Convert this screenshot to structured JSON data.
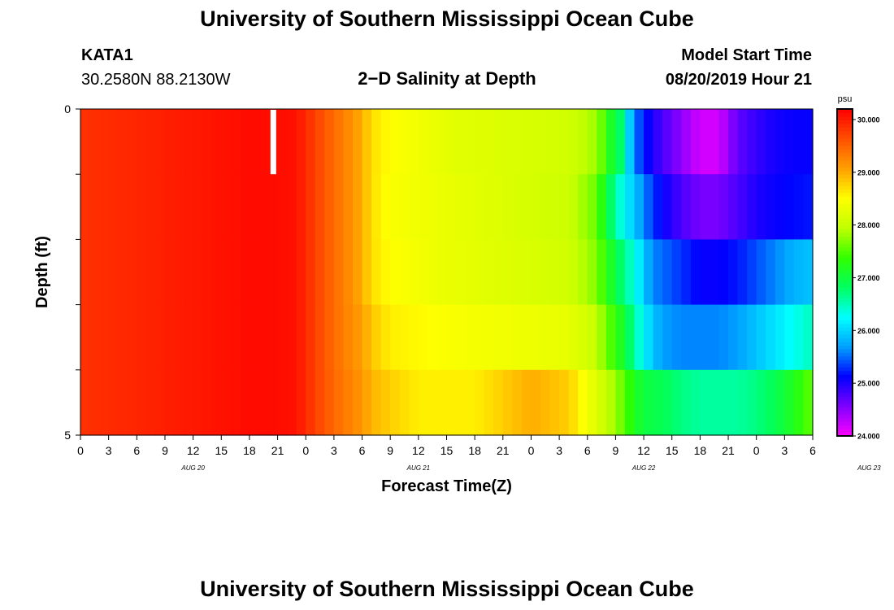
{
  "page": {
    "title_top": "University of Southern Mississippi Ocean Cube",
    "title_bottom": "University of Southern Mississippi Ocean Cube",
    "station": "KATA1",
    "coords": "30.2580N 88.2130W",
    "subtitle": "2−D Salinity at Depth",
    "model_start_label": "Model Start Time",
    "model_start_value": "08/20/2019 Hour 21"
  },
  "chart_data": {
    "type": "heatmap",
    "title": "2−D Salinity at Depth",
    "xlabel": "Forecast Time(Z)",
    "ylabel": "Depth (ft)",
    "x_tick_labels": [
      "0",
      "3",
      "6",
      "9",
      "12",
      "15",
      "18",
      "21",
      "0",
      "3",
      "6",
      "9",
      "12",
      "15",
      "18",
      "21",
      "0",
      "3",
      "6",
      "9",
      "12",
      "15",
      "18",
      "21",
      "0",
      "3",
      "6"
    ],
    "date_labels": [
      {
        "text": "AUG 20",
        "hour": 0
      },
      {
        "text": "AUG 21",
        "hour": 24
      },
      {
        "text": "AUG 22",
        "hour": 48
      },
      {
        "text": "AUG 23",
        "hour": 72
      }
    ],
    "x_start": "2019-08-20 00Z",
    "x_range_hours": [
      0,
      78
    ],
    "ylim": [
      0,
      5
    ],
    "y_tick_labels": [
      "0",
      "5"
    ],
    "y_minor_ticks": [
      1,
      2,
      3,
      4
    ],
    "depth_layers": [
      0.5,
      1.5,
      2.5,
      3.5,
      4.5
    ],
    "colorbar": {
      "unit": "psu",
      "min": 24.0,
      "max": 30.2,
      "ticks": [
        "30.000",
        "29.000",
        "28.000",
        "27.000",
        "26.000",
        "25.000",
        "24.000"
      ],
      "tick_values": [
        30,
        29,
        28,
        27,
        26,
        25,
        24
      ],
      "colors": [
        "#ff00ff",
        "#8000ff",
        "#0000ff",
        "#00a0ff",
        "#00ffff",
        "#00ff60",
        "#30ff00",
        "#c0ff00",
        "#ffff00",
        "#ffa000",
        "#ff5000",
        "#ff0000"
      ]
    },
    "missing_marker": {
      "hour": 20.5,
      "layer": 0
    },
    "series": [
      {
        "name": "0-1 ft",
        "hours": [
          0,
          10,
          18,
          20,
          23,
          24,
          26,
          28,
          30,
          31,
          33,
          40,
          52,
          55,
          56,
          57,
          57.5,
          58,
          59,
          60,
          61,
          62,
          64,
          66,
          68,
          70,
          72,
          74,
          76,
          78
        ],
        "values": [
          29.85,
          30.0,
          30.12,
          30.12,
          30.08,
          29.9,
          29.6,
          29.3,
          29.0,
          28.7,
          28.5,
          28.25,
          28.1,
          27.8,
          27.4,
          26.9,
          26.8,
          26.3,
          25.6,
          25.2,
          25.0,
          24.8,
          24.5,
          24.2,
          24.2,
          24.7,
          24.9,
          25.05,
          25.1,
          25.1
        ]
      },
      {
        "name": "1-2 ft",
        "hours": [
          0,
          10,
          18,
          20,
          23,
          24,
          26,
          28,
          30,
          31,
          33,
          40,
          52,
          55,
          56,
          57,
          58,
          59,
          60,
          61,
          62,
          64,
          66,
          68,
          70,
          72,
          74,
          76,
          78
        ],
        "values": [
          29.85,
          30.0,
          30.12,
          30.12,
          30.08,
          29.9,
          29.6,
          29.3,
          29.0,
          28.7,
          28.45,
          28.3,
          28.05,
          27.6,
          27.0,
          26.6,
          26.2,
          25.9,
          25.6,
          25.3,
          25.1,
          24.8,
          24.6,
          24.6,
          24.8,
          25.0,
          25.1,
          25.15,
          25.2
        ]
      },
      {
        "name": "2-3 ft",
        "hours": [
          0,
          10,
          18,
          20,
          23,
          24,
          26,
          28,
          30,
          31,
          33,
          40,
          52,
          55,
          56,
          57,
          58,
          59,
          60,
          61,
          62,
          64,
          66,
          68,
          70,
          72,
          74,
          76,
          78
        ],
        "values": [
          29.85,
          30.0,
          30.12,
          30.12,
          30.08,
          29.9,
          29.6,
          29.3,
          29.0,
          28.7,
          28.5,
          28.3,
          28.1,
          27.7,
          27.3,
          27.0,
          26.6,
          26.4,
          25.9,
          25.6,
          25.5,
          25.3,
          25.1,
          25.1,
          25.2,
          25.4,
          25.6,
          25.8,
          25.9
        ]
      },
      {
        "name": "3-4 ft",
        "hours": [
          0,
          10,
          18,
          20,
          23,
          24,
          26,
          28,
          30,
          31,
          33,
          40,
          52,
          55,
          56,
          57,
          58,
          59,
          60,
          61,
          62,
          64,
          66,
          68,
          70,
          72,
          74,
          76,
          78
        ],
        "values": [
          29.85,
          30.0,
          30.12,
          30.12,
          30.08,
          29.9,
          29.6,
          29.3,
          29.1,
          28.85,
          28.6,
          28.45,
          28.3,
          28.0,
          27.6,
          27.4,
          27.0,
          26.6,
          26.2,
          25.9,
          25.7,
          25.6,
          25.6,
          25.6,
          25.7,
          25.9,
          26.1,
          26.3,
          26.5
        ]
      },
      {
        "name": "4-5 ft",
        "hours": [
          0,
          10,
          18,
          20,
          23,
          24,
          26,
          28,
          30,
          31,
          33,
          36,
          42,
          45,
          48,
          52,
          54,
          56,
          57,
          58,
          59,
          60,
          62,
          64,
          66,
          68,
          70,
          72,
          74,
          76,
          78
        ],
        "values": [
          29.85,
          30.0,
          30.12,
          30.12,
          30.08,
          29.9,
          29.6,
          29.35,
          29.15,
          28.95,
          28.8,
          28.6,
          28.6,
          28.8,
          29.0,
          28.8,
          28.4,
          28.0,
          27.8,
          27.5,
          27.2,
          27.0,
          26.9,
          26.7,
          26.6,
          26.6,
          26.6,
          26.7,
          26.9,
          27.2,
          27.6
        ]
      }
    ]
  }
}
